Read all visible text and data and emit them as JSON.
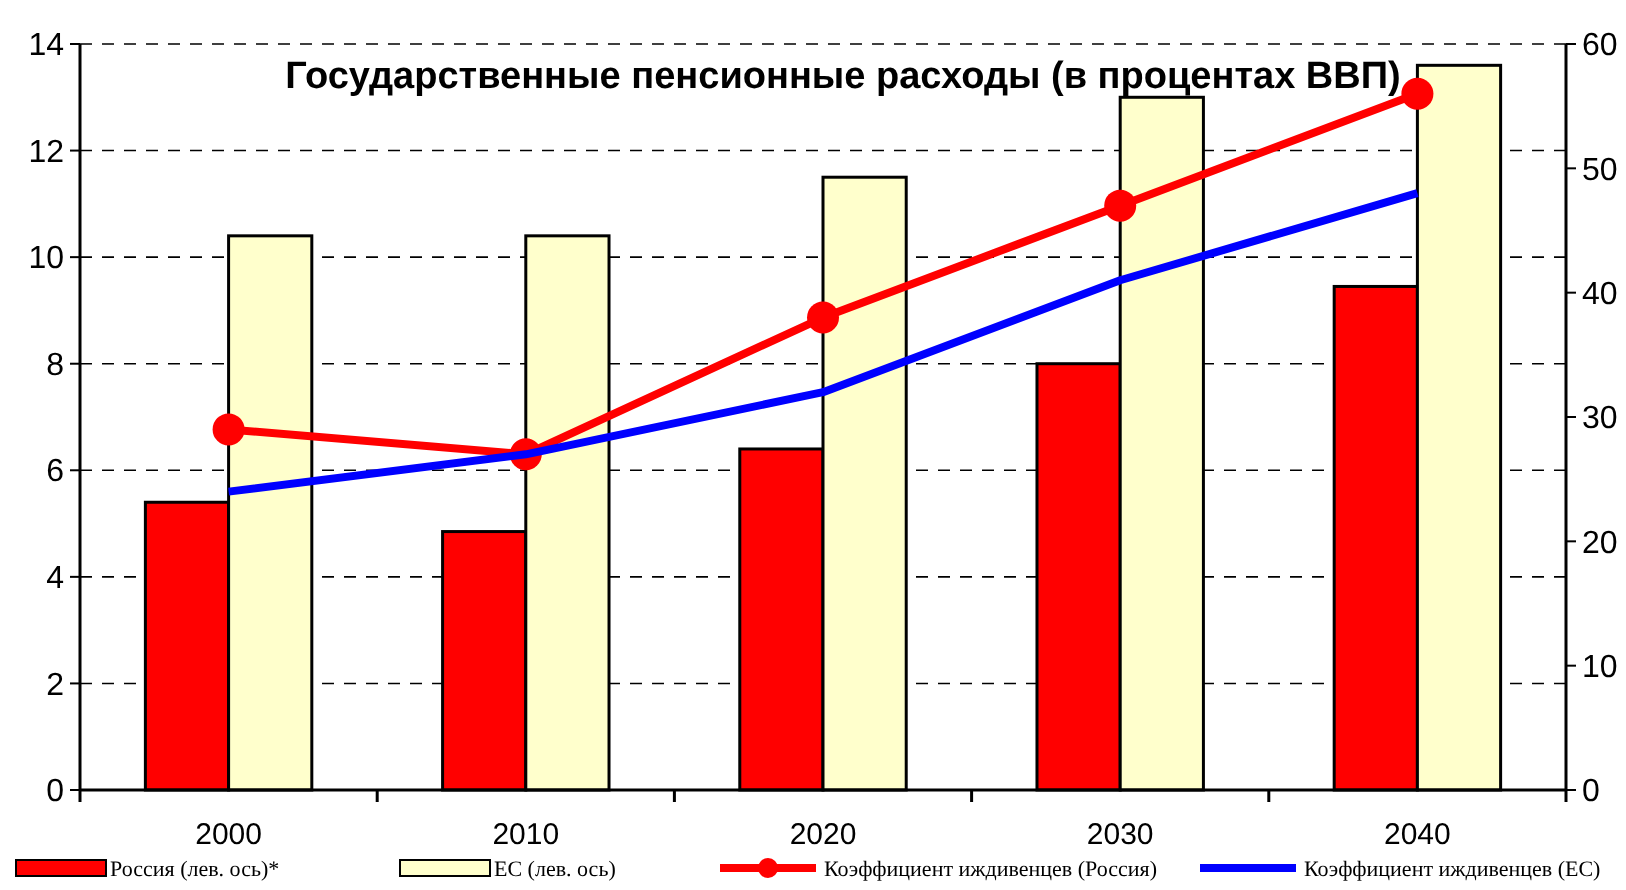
{
  "chart_data": {
    "type": "bar",
    "title": "Государственные пенсионные расходы (в процентах ВВП)",
    "categories": [
      "2000",
      "2010",
      "2020",
      "2030",
      "2040"
    ],
    "series": [
      {
        "name": "Россия (лев. ось)*",
        "color": "#ff0000",
        "values": [
          5.4,
          4.85,
          6.4,
          8.0,
          9.45
        ]
      },
      {
        "name": "ЕС (лев. ось)",
        "color": "#ffffcc",
        "values": [
          10.4,
          10.4,
          11.5,
          13.0,
          13.6
        ]
      },
      {
        "name": "Коэффициент иждивенцев (Россия)",
        "type": "line",
        "axis": "y2",
        "marker": "circle",
        "color": "#ff0000",
        "values": [
          29,
          27,
          38,
          47,
          56
        ]
      },
      {
        "name": "Коэффициент иждивенцев  (ЕС)",
        "type": "line",
        "axis": "y2",
        "marker": "none",
        "color": "#0000ff",
        "values": [
          24,
          27,
          32,
          41,
          48
        ]
      }
    ],
    "ylim": [
      0,
      14
    ],
    "yticks": [
      0,
      2,
      4,
      6,
      8,
      10,
      12,
      14
    ],
    "y2lim": [
      0,
      60
    ],
    "y2ticks": [
      0,
      10,
      20,
      30,
      40,
      50,
      60
    ],
    "grid": "y",
    "legend": "bottom"
  }
}
